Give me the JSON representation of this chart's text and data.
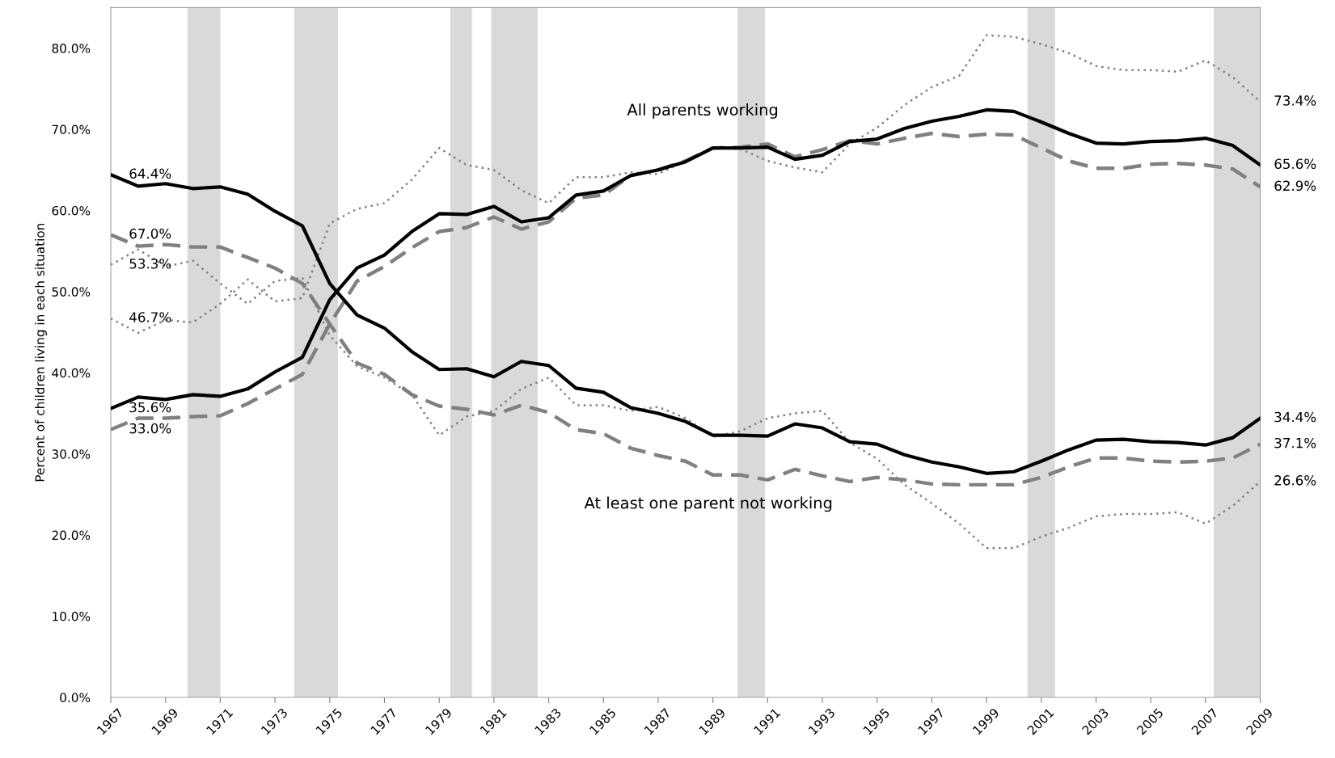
{
  "chart_data": {
    "type": "line",
    "ylabel": "Percent of children living in each situation",
    "x": [
      1967,
      1968,
      1969,
      1970,
      1971,
      1972,
      1973,
      1974,
      1975,
      1976,
      1977,
      1978,
      1979,
      1980,
      1981,
      1982,
      1983,
      1984,
      1985,
      1986,
      1987,
      1988,
      1989,
      1990,
      1991,
      1992,
      1993,
      1994,
      1995,
      1996,
      1997,
      1998,
      1999,
      2000,
      2001,
      2002,
      2003,
      2004,
      2005,
      2006,
      2007,
      2008,
      2009
    ],
    "series": [
      {
        "color": "#808080",
        "line_style": "dotted",
        "values": [
          46.7,
          44.9,
          46.5,
          46.2,
          48.5,
          51.5,
          48.8,
          49.2,
          58.4,
          60.2,
          60.9,
          63.8,
          67.7,
          65.6,
          65.0,
          62.5,
          60.9,
          64.1,
          64.1,
          64.7,
          64.5,
          66.1,
          67.7,
          67.6,
          66.1,
          65.3,
          64.7,
          68.2,
          70.2,
          73.0,
          75.2,
          76.6,
          81.6,
          81.4,
          80.5,
          79.4,
          77.8,
          77.3,
          77.3,
          77.1,
          78.5,
          76.4,
          73.4
        ],
        "value_labels": [
          "46.7%",
          null,
          null,
          null,
          null,
          null,
          null,
          null,
          null,
          null,
          null,
          null,
          null,
          null,
          null,
          null,
          null,
          null,
          null,
          null,
          null,
          null,
          null,
          null,
          null,
          null,
          null,
          null,
          null,
          null,
          null,
          null,
          null,
          null,
          null,
          null,
          null,
          null,
          null,
          null,
          null,
          null,
          "73.4%"
        ]
      },
      {
        "color": "#808080",
        "line_style": "dotted",
        "values": [
          53.3,
          55.2,
          53.1,
          53.8,
          51.0,
          48.5,
          51.3,
          51.7,
          44.6,
          40.8,
          39.4,
          37.3,
          32.3,
          34.6,
          35.3,
          38.0,
          39.4,
          36.0,
          36.0,
          35.3,
          35.8,
          34.4,
          32.1,
          32.8,
          34.4,
          35.0,
          35.3,
          31.4,
          29.4,
          26.2,
          23.9,
          21.4,
          18.4,
          18.4,
          19.8,
          20.9,
          22.3,
          22.6,
          22.6,
          22.8,
          21.4,
          23.6,
          26.6
        ],
        "value_labels": [
          "53.3%",
          null,
          null,
          null,
          null,
          null,
          null,
          null,
          null,
          null,
          null,
          null,
          null,
          null,
          null,
          null,
          null,
          null,
          null,
          null,
          null,
          null,
          null,
          null,
          null,
          null,
          null,
          null,
          null,
          null,
          null,
          null,
          null,
          null,
          null,
          null,
          null,
          null,
          null,
          null,
          null,
          null,
          "26.6%"
        ]
      },
      {
        "color": "#808080",
        "line_style": "dashed",
        "values": [
          33.0,
          34.4,
          34.4,
          34.6,
          34.7,
          36.2,
          38.0,
          39.8,
          46.0,
          51.3,
          53.1,
          55.4,
          57.4,
          57.9,
          59.2,
          57.7,
          58.6,
          61.5,
          61.9,
          64.3,
          65.0,
          66.1,
          67.7,
          67.8,
          68.2,
          66.6,
          67.5,
          68.6,
          68.2,
          68.9,
          69.5,
          69.1,
          69.4,
          69.3,
          67.7,
          66.1,
          65.2,
          65.2,
          65.7,
          65.8,
          65.6,
          65.1,
          62.9
        ],
        "value_labels": [
          "33.0%",
          null,
          null,
          null,
          null,
          null,
          null,
          null,
          null,
          null,
          null,
          null,
          null,
          null,
          null,
          null,
          null,
          null,
          null,
          null,
          null,
          null,
          null,
          null,
          null,
          null,
          null,
          null,
          null,
          null,
          null,
          null,
          null,
          null,
          null,
          null,
          null,
          null,
          null,
          null,
          null,
          null,
          "62.9%"
        ]
      },
      {
        "color": "#808080",
        "line_style": "dashed",
        "values": [
          57.0,
          55.6,
          55.8,
          55.5,
          55.5,
          54.2,
          52.9,
          51.0,
          46.0,
          41.2,
          39.8,
          37.3,
          35.9,
          35.5,
          34.8,
          36.0,
          35.1,
          33.0,
          32.5,
          30.7,
          29.8,
          29.1,
          27.4,
          27.4,
          26.8,
          28.1,
          27.3,
          26.6,
          27.1,
          26.8,
          26.3,
          26.2,
          26.2,
          26.2,
          27.1,
          28.4,
          29.5,
          29.5,
          29.1,
          29.0,
          29.1,
          29.5,
          31.2
        ]
      },
      {
        "color": "#000000",
        "line_style": "solid",
        "values": [
          35.6,
          37.0,
          36.7,
          37.3,
          37.1,
          38.0,
          40.1,
          41.9,
          49.0,
          52.9,
          54.5,
          57.4,
          59.6,
          59.5,
          60.5,
          58.6,
          59.1,
          61.9,
          62.4,
          64.3,
          65.0,
          66.0,
          67.7,
          67.7,
          67.8,
          66.3,
          66.8,
          68.5,
          68.8,
          70.1,
          71.0,
          71.6,
          72.4,
          72.2,
          70.9,
          69.5,
          68.3,
          68.2,
          68.5,
          68.6,
          68.9,
          68.0,
          65.6
        ],
        "value_labels": [
          "35.6%",
          null,
          null,
          null,
          null,
          null,
          null,
          null,
          null,
          null,
          null,
          null,
          null,
          null,
          null,
          null,
          null,
          null,
          null,
          null,
          null,
          null,
          null,
          null,
          null,
          null,
          null,
          null,
          null,
          null,
          null,
          null,
          null,
          null,
          null,
          null,
          null,
          null,
          null,
          null,
          null,
          null,
          "65.6%"
        ]
      },
      {
        "color": "#000000",
        "line_style": "solid",
        "values": [
          64.4,
          63.0,
          63.3,
          62.7,
          62.9,
          62.0,
          59.9,
          58.1,
          51.0,
          47.1,
          45.5,
          42.6,
          40.4,
          40.5,
          39.5,
          41.4,
          40.9,
          38.1,
          37.6,
          35.7,
          35.0,
          34.0,
          32.3,
          32.3,
          32.2,
          33.7,
          33.2,
          31.5,
          31.2,
          29.9,
          29.0,
          28.4,
          27.6,
          27.8,
          29.1,
          30.5,
          31.7,
          31.8,
          31.5,
          31.4,
          31.1,
          32.0,
          34.4
        ],
        "value_labels": [
          "64.4%",
          null,
          null,
          null,
          null,
          null,
          null,
          null,
          null,
          null,
          null,
          null,
          null,
          null,
          null,
          null,
          null,
          null,
          null,
          null,
          null,
          null,
          null,
          null,
          null,
          null,
          null,
          null,
          null,
          null,
          null,
          null,
          null,
          null,
          null,
          null,
          null,
          null,
          null,
          null,
          null,
          null,
          "34.4%"
        ]
      }
    ],
    "bands": [
      {
        "axis": "x",
        "from": 1969.8,
        "to": 1971.0,
        "color": "#d9d9d9"
      },
      {
        "axis": "x",
        "from": 1973.7,
        "to": 1975.3,
        "color": "#d9d9d9"
      },
      {
        "axis": "x",
        "from": 1979.4,
        "to": 1980.2,
        "color": "#d9d9d9"
      },
      {
        "axis": "x",
        "from": 1980.9,
        "to": 1982.6,
        "color": "#d9d9d9"
      },
      {
        "axis": "x",
        "from": 1989.9,
        "to": 1990.9,
        "color": "#d9d9d9"
      },
      {
        "axis": "x",
        "from": 2000.5,
        "to": 2001.5,
        "color": "#d9d9d9"
      },
      {
        "axis": "x",
        "from": 2007.3,
        "to": 2009.0,
        "color": "#d9d9d9"
      }
    ],
    "annotations": [
      "All parents working",
      "At least one parent not working",
      "67.0%",
      "37.1%"
    ],
    "xlim": [
      1967,
      2009
    ],
    "xticks": [
      1967,
      1969,
      1971,
      1973,
      1975,
      1977,
      1979,
      1981,
      1983,
      1985,
      1987,
      1989,
      1991,
      1993,
      1995,
      1997,
      1999,
      2001,
      2003,
      2005,
      2007,
      2009
    ],
    "ylim": [
      0,
      85
    ],
    "yticks": [
      {
        "value": 0,
        "label": "0.0%"
      },
      {
        "value": 10,
        "label": "10.0%"
      },
      {
        "value": 20,
        "label": "20.0%"
      },
      {
        "value": 30,
        "label": "30.0%"
      },
      {
        "value": 40,
        "label": "40.0%"
      },
      {
        "value": 50,
        "label": "50.0%"
      },
      {
        "value": 60,
        "label": "60.0%"
      },
      {
        "value": 70,
        "label": "70.0%"
      },
      {
        "value": 80,
        "label": "80.0%"
      }
    ],
    "grid": false,
    "legend": false,
    "marker": "none"
  }
}
